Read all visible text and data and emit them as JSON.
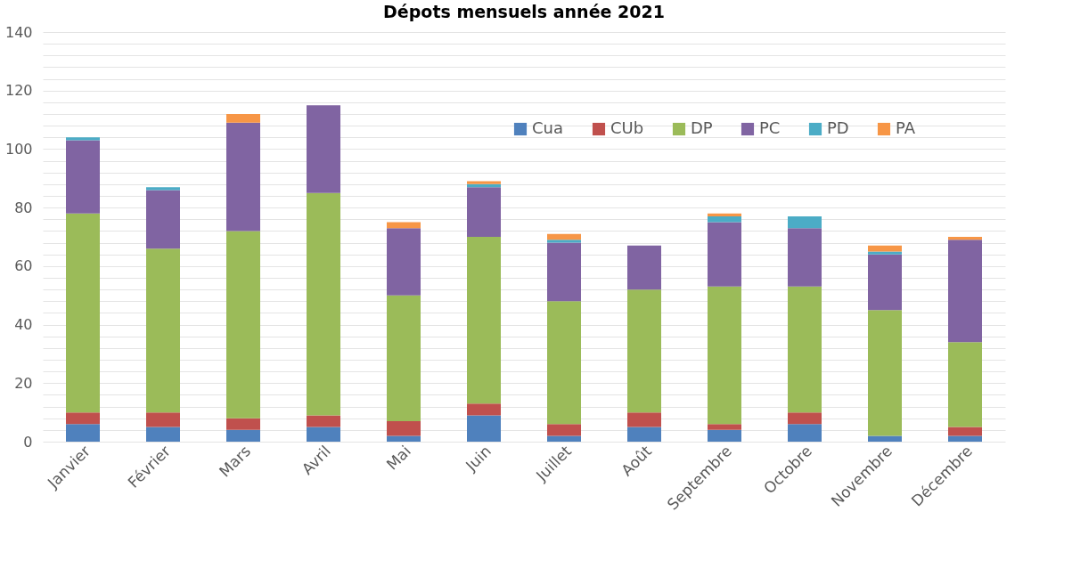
{
  "chart_data": {
    "type": "bar",
    "title": "Dépots mensuels année 2021",
    "stacked": true,
    "categories": [
      "Janvier",
      "Février",
      "Mars",
      "Avril",
      "Mai",
      "Juin",
      "Juillet",
      "Août",
      "Septembre",
      "Octobre",
      "Novembre",
      "Décembre"
    ],
    "series": [
      {
        "name": "Cua",
        "color": "#4f81bd",
        "values": [
          6,
          5,
          4,
          5,
          2,
          9,
          2,
          5,
          4,
          6,
          2,
          2
        ]
      },
      {
        "name": "CUb",
        "color": "#c0504d",
        "values": [
          4,
          5,
          4,
          4,
          5,
          4,
          4,
          5,
          2,
          4,
          0,
          3
        ]
      },
      {
        "name": "DP",
        "color": "#9bbb59",
        "values": [
          68,
          56,
          64,
          76,
          43,
          57,
          42,
          42,
          47,
          43,
          43,
          29
        ]
      },
      {
        "name": "PC",
        "color": "#8064a2",
        "values": [
          25,
          20,
          37,
          30,
          23,
          17,
          20,
          15,
          22,
          20,
          19,
          35
        ]
      },
      {
        "name": "PD",
        "color": "#4bacc6",
        "values": [
          1,
          1,
          0,
          0,
          0,
          1,
          1,
          0,
          2,
          4,
          1,
          0
        ]
      },
      {
        "name": "PA",
        "color": "#f79646",
        "values": [
          0,
          0,
          3,
          0,
          2,
          1,
          2,
          0,
          1,
          0,
          2,
          1
        ]
      }
    ],
    "ylim": [
      0,
      140
    ],
    "yticks": [
      0,
      {
        "value": 4,
        "label": null
      },
      {
        "value": 8,
        "label": null
      },
      {
        "value": 12,
        "label": null
      },
      {
        "value": 16,
        "label": null
      },
      20,
      {
        "value": 24,
        "label": null
      },
      {
        "value": 28,
        "label": null
      },
      {
        "value": 32,
        "label": null
      },
      {
        "value": 36,
        "label": null
      },
      40,
      {
        "value": 44,
        "label": null
      },
      {
        "value": 48,
        "label": null
      },
      {
        "value": 52,
        "label": null
      },
      {
        "value": 56,
        "label": null
      },
      60,
      {
        "value": 64,
        "label": null
      },
      {
        "value": 68,
        "label": null
      },
      {
        "value": 72,
        "label": null
      },
      {
        "value": 76,
        "label": null
      },
      80,
      {
        "value": 84,
        "label": null
      },
      {
        "value": 88,
        "label": null
      },
      {
        "value": 92,
        "label": null
      },
      {
        "value": 96,
        "label": null
      },
      100,
      {
        "value": 104,
        "label": null
      },
      {
        "value": 108,
        "label": null
      },
      {
        "value": 112,
        "label": null
      },
      {
        "value": 116,
        "label": null
      },
      120,
      {
        "value": 124,
        "label": null
      },
      {
        "value": 128,
        "label": null
      },
      {
        "value": 132,
        "label": null
      },
      {
        "value": 136,
        "label": null
      },
      140
    ],
    "grid": "y",
    "legend": "top right"
  }
}
